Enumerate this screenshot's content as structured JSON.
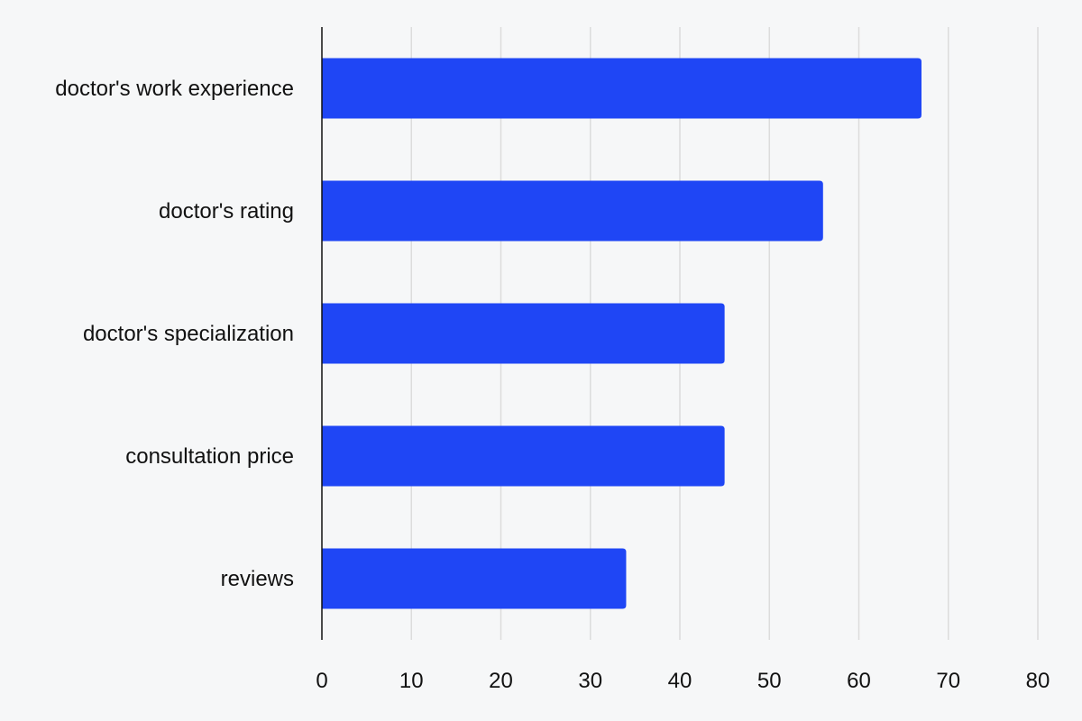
{
  "chart_data": {
    "type": "bar",
    "orientation": "horizontal",
    "categories": [
      "doctor's work experience",
      "doctor's rating",
      "doctor's specialization",
      "consultation price",
      "reviews"
    ],
    "values": [
      67,
      56,
      45,
      45,
      34
    ],
    "xticks": [
      0,
      10,
      20,
      30,
      40,
      50,
      60,
      70,
      80
    ],
    "xlim": [
      0,
      80
    ],
    "title": "",
    "xlabel": "",
    "ylabel": "",
    "grid": "vertical",
    "legend": "none",
    "colors": {
      "bar": "#1f46f5",
      "background": "#f6f7f8",
      "grid": "#dcdcdc",
      "axis": "#111111",
      "text": "#111111"
    }
  }
}
